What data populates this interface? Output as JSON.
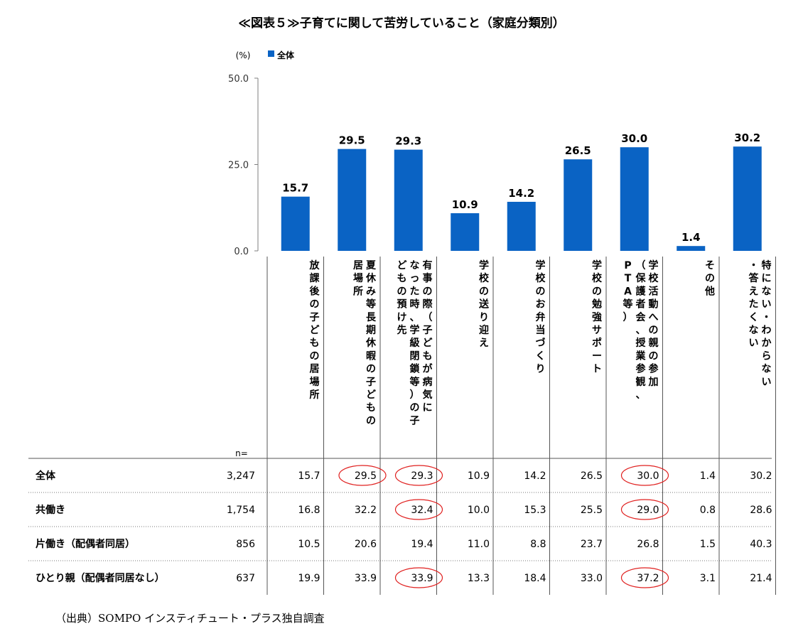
{
  "title": "≪図表５≫子育てに関して苦労していること（家庭分類別）",
  "unit": "(%)",
  "legend": "全体",
  "n_label": "n=",
  "source": "（出典）SOMPO インスティチュート・プラス独自調査",
  "colors": {
    "bar": "#0a63c4",
    "circle": "#e0201f",
    "axis": "#7f7f7f"
  },
  "chart_data": {
    "type": "bar",
    "ylim": [
      0,
      50
    ],
    "yticks": [
      "0.0",
      "25.0",
      "50.0"
    ],
    "legend_position": "top-left",
    "categories": [
      "放課後の子どもの居場所",
      "夏休み等長期休暇の子どもの居場所",
      "有事の際（子どもが病気になった時、学級閉鎖等）の子どもの預け先",
      "学校の送り迎え",
      "学校のお弁当づくり",
      "学校の勉強サポート",
      "学校活動への親の参加（保護者会、授業参観、PTA等）",
      "その他",
      "特にない・わからない・答えたくない"
    ],
    "category_lines": [
      [
        "放課後の子どもの居場所"
      ],
      [
        "夏休み等長期休暇の子どもの",
        "居場所"
      ],
      [
        "有事の際（子どもが病気に",
        "なった時、学級閉鎖等）の子",
        "どもの預け先"
      ],
      [
        "学校の送り迎え"
      ],
      [
        "学校のお弁当づくり"
      ],
      [
        "学校の勉強サポート"
      ],
      [
        "学校活動への親の参加",
        "（保護者会、授業参観、",
        "PTA等）"
      ],
      [
        "その他"
      ],
      [
        "特にない・わからない",
        "・答えたくない"
      ]
    ],
    "series": [
      {
        "name": "全体",
        "values": [
          15.7,
          29.5,
          29.3,
          10.9,
          14.2,
          26.5,
          30.0,
          1.4,
          30.2
        ]
      }
    ],
    "value_labels": [
      "15.7",
      "29.5",
      "29.3",
      "10.9",
      "14.2",
      "26.5",
      "30.0",
      "1.4",
      "30.2"
    ]
  },
  "table": {
    "rows": [
      {
        "label": "全体",
        "n": "3,247",
        "values": [
          "15.7",
          "29.5",
          "29.3",
          "10.9",
          "14.2",
          "26.5",
          "30.0",
          "1.4",
          "30.2"
        ],
        "circled": [
          1,
          2,
          6
        ]
      },
      {
        "label": "共働き",
        "n": "1,754",
        "values": [
          "16.8",
          "32.2",
          "32.4",
          "10.0",
          "15.3",
          "25.5",
          "29.0",
          "0.8",
          "28.6"
        ],
        "circled": [
          2,
          6
        ]
      },
      {
        "label": "片働き（配偶者同居）",
        "n": "856",
        "values": [
          "10.5",
          "20.6",
          "19.4",
          "11.0",
          "8.8",
          "23.7",
          "26.8",
          "1.5",
          "40.3"
        ],
        "circled": []
      },
      {
        "label": "ひとり親（配偶者同居なし）",
        "n": "637",
        "values": [
          "19.9",
          "33.9",
          "33.9",
          "13.3",
          "18.4",
          "33.0",
          "37.2",
          "3.1",
          "21.4"
        ],
        "circled": [
          2,
          6
        ]
      }
    ]
  }
}
